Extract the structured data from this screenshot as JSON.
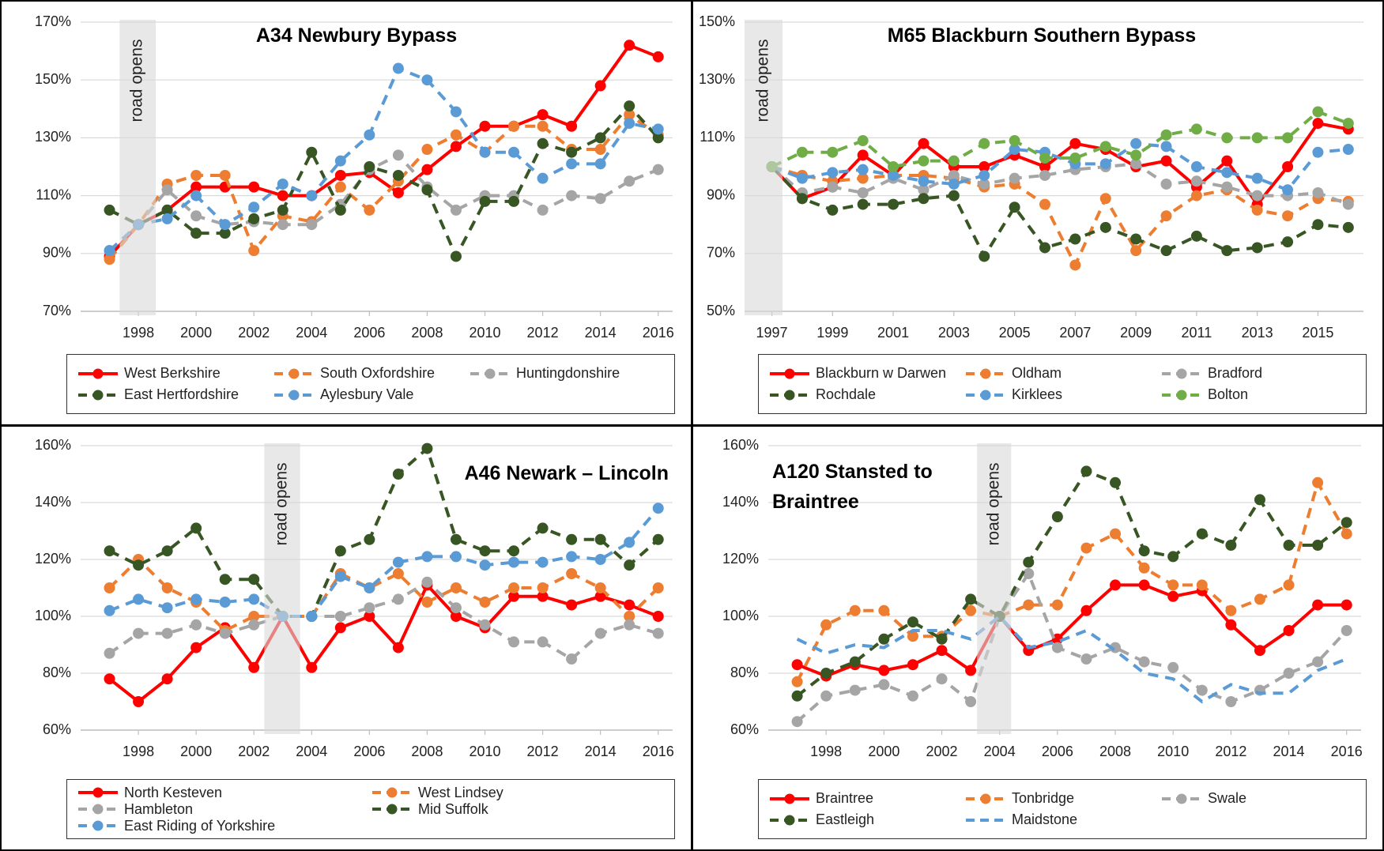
{
  "chart_data": [
    {
      "type": "line",
      "title": "A34 Newbury Bypass",
      "x": [
        1997,
        1998,
        1999,
        2000,
        2001,
        2002,
        2003,
        2004,
        2005,
        2006,
        2007,
        2008,
        2009,
        2010,
        2011,
        2012,
        2013,
        2014,
        2015,
        2016
      ],
      "xlim": [
        1996,
        2016.5
      ],
      "xticks": [
        1998,
        2000,
        2002,
        2004,
        2006,
        2008,
        2010,
        2012,
        2014,
        2016
      ],
      "ylim": [
        70,
        170
      ],
      "yticks": [
        {
          "value": 70,
          "label": "70%"
        },
        {
          "value": 90,
          "label": "90%"
        },
        {
          "value": 110,
          "label": "110%"
        },
        {
          "value": 130,
          "label": "130%"
        },
        {
          "value": 150,
          "label": "150%"
        },
        {
          "value": 170,
          "label": "170%"
        }
      ],
      "grid": true,
      "legend": "bottom",
      "annotation": {
        "text": "road opens",
        "x0": 1997.35,
        "x1": 1998.6
      },
      "series": [
        {
          "name": "West Berkshire",
          "color": "#ff0000",
          "dash": false,
          "markers": true,
          "values": [
            89,
            100,
            105,
            113,
            113,
            113,
            110,
            110,
            117,
            118,
            111,
            119,
            127,
            134,
            134,
            138,
            134,
            148,
            162,
            158
          ]
        },
        {
          "name": "South Oxfordshire",
          "color": "#ed7d31",
          "dash": true,
          "markers": true,
          "values": [
            88,
            100,
            114,
            117,
            117,
            91,
            103,
            101,
            113,
            105,
            115,
            126,
            131,
            125,
            134,
            134,
            126,
            126,
            138,
            131
          ]
        },
        {
          "name": "Huntingdonshire",
          "color": "#a5a5a5",
          "dash": true,
          "markers": true,
          "values": [
            91,
            100,
            112,
            103,
            100,
            101,
            100,
            100,
            107,
            119,
            124,
            113,
            105,
            110,
            110,
            105,
            110,
            109,
            115,
            119
          ]
        },
        {
          "name": "East Hertfordshire",
          "color": "#375623",
          "dash": true,
          "markers": true,
          "values": [
            105,
            100,
            105,
            97,
            97,
            102,
            105,
            125,
            105,
            120,
            117,
            112,
            89,
            108,
            108,
            128,
            125,
            130,
            141,
            130
          ]
        },
        {
          "name": "Aylesbury Vale",
          "color": "#5b9bd5",
          "dash": true,
          "markers": true,
          "values": [
            91,
            100,
            102,
            110,
            100,
            106,
            114,
            110,
            122,
            131,
            154,
            150,
            139,
            125,
            125,
            116,
            121,
            121,
            135,
            133
          ]
        }
      ]
    },
    {
      "type": "line",
      "title": "M65 Blackburn Southern Bypass",
      "x": [
        1997,
        1998,
        1999,
        2000,
        2001,
        2002,
        2003,
        2004,
        2005,
        2006,
        2007,
        2008,
        2009,
        2010,
        2011,
        2012,
        2013,
        2014,
        2015,
        2016
      ],
      "xlim": [
        1996.1,
        2016.5
      ],
      "xticks": [
        1997,
        1999,
        2001,
        2003,
        2005,
        2007,
        2009,
        2011,
        2013,
        2015
      ],
      "ylim": [
        50,
        150
      ],
      "yticks": [
        {
          "value": 50,
          "label": "50%"
        },
        {
          "value": 70,
          "label": "70%"
        },
        {
          "value": 90,
          "label": "90%"
        },
        {
          "value": 110,
          "label": "110%"
        },
        {
          "value": 130,
          "label": "130%"
        },
        {
          "value": 150,
          "label": "150%"
        }
      ],
      "grid": true,
      "legend": "bottom",
      "annotation": {
        "text": "road opens",
        "x0": 1996.1,
        "x1": 1997.35
      },
      "series": [
        {
          "name": "Blackburn w Darwen",
          "color": "#ff0000",
          "dash": false,
          "markers": true,
          "values": [
            100,
            89,
            93,
            104,
            97,
            108,
            100,
            100,
            104,
            100,
            108,
            106,
            100,
            102,
            93,
            102,
            87,
            100,
            115,
            113
          ]
        },
        {
          "name": "Oldham",
          "color": "#ed7d31",
          "dash": true,
          "markers": true,
          "values": [
            100,
            97,
            95,
            96,
            97,
            97,
            96,
            93,
            94,
            87,
            66,
            89,
            71,
            83,
            90,
            92,
            85,
            83,
            89,
            88
          ]
        },
        {
          "name": "Bradford",
          "color": "#a5a5a5",
          "dash": true,
          "markers": true,
          "values": [
            100,
            91,
            93,
            91,
            96,
            92,
            97,
            94,
            96,
            97,
            99,
            100,
            101,
            94,
            95,
            93,
            90,
            90,
            91,
            87
          ]
        },
        {
          "name": "Rochdale",
          "color": "#375623",
          "dash": true,
          "markers": true,
          "values": [
            100,
            89,
            85,
            87,
            87,
            89,
            90,
            69,
            86,
            72,
            75,
            79,
            75,
            71,
            76,
            71,
            72,
            74,
            80,
            79
          ]
        },
        {
          "name": "Kirklees",
          "color": "#5b9bd5",
          "dash": true,
          "markers": true,
          "values": [
            100,
            96,
            98,
            99,
            97,
            95,
            94,
            97,
            106,
            105,
            101,
            101,
            108,
            107,
            100,
            98,
            96,
            92,
            105,
            106
          ]
        },
        {
          "name": "Bolton",
          "color": "#70ad47",
          "dash": true,
          "markers": true,
          "values": [
            100,
            105,
            105,
            109,
            100,
            102,
            102,
            108,
            109,
            103,
            103,
            107,
            104,
            111,
            113,
            110,
            110,
            110,
            119,
            115
          ]
        }
      ]
    },
    {
      "type": "line",
      "title": "A46 Newark – Lincoln",
      "x": [
        1997,
        1998,
        1999,
        2000,
        2001,
        2002,
        2003,
        2004,
        2005,
        2006,
        2007,
        2008,
        2009,
        2010,
        2011,
        2012,
        2013,
        2014,
        2015,
        2016
      ],
      "xlim": [
        1996,
        2016.5
      ],
      "xticks": [
        1998,
        2000,
        2002,
        2004,
        2006,
        2008,
        2010,
        2012,
        2014,
        2016
      ],
      "ylim": [
        60,
        160
      ],
      "yticks": [
        {
          "value": 60,
          "label": "60%"
        },
        {
          "value": 80,
          "label": "80%"
        },
        {
          "value": 100,
          "label": "100%"
        },
        {
          "value": 120,
          "label": "120%"
        },
        {
          "value": 140,
          "label": "140%"
        },
        {
          "value": 160,
          "label": "160%"
        }
      ],
      "grid": true,
      "legend": "bottom",
      "annotation": {
        "text": "road opens",
        "x0": 2002.36,
        "x1": 2003.6
      },
      "series": [
        {
          "name": "North Kesteven",
          "color": "#ff0000",
          "dash": false,
          "markers": true,
          "values": [
            78,
            70,
            78,
            89,
            96,
            82,
            100,
            82,
            96,
            100,
            89,
            111,
            100,
            96,
            107,
            107,
            104,
            107,
            104,
            100
          ]
        },
        {
          "name": "West Lindsey",
          "color": "#ed7d31",
          "dash": true,
          "markers": true,
          "values": [
            110,
            120,
            110,
            105,
            95,
            100,
            100,
            100,
            115,
            110,
            115,
            105,
            110,
            105,
            110,
            110,
            115,
            110,
            100,
            110
          ]
        },
        {
          "name": "Hambleton",
          "color": "#a5a5a5",
          "dash": true,
          "markers": true,
          "values": [
            87,
            94,
            94,
            97,
            94,
            97,
            100,
            100,
            100,
            103,
            106,
            112,
            103,
            97,
            91,
            91,
            85,
            94,
            97,
            94
          ]
        },
        {
          "name": "Mid Suffolk",
          "color": "#375623",
          "dash": true,
          "markers": true,
          "values": [
            123,
            118,
            123,
            131,
            113,
            113,
            100,
            100,
            123,
            127,
            150,
            159,
            127,
            123,
            123,
            131,
            127,
            127,
            118,
            127
          ]
        },
        {
          "name": "East Riding of Yorkshire",
          "color": "#5b9bd5",
          "dash": true,
          "markers": true,
          "values": [
            102,
            106,
            103,
            106,
            105,
            106,
            100,
            100,
            114,
            110,
            119,
            121,
            121,
            118,
            119,
            119,
            121,
            120,
            126,
            138
          ]
        }
      ]
    },
    {
      "type": "line",
      "title": "A120 Stansted to Braintree",
      "x": [
        1997,
        1998,
        1999,
        2000,
        2001,
        2002,
        2003,
        2004,
        2005,
        2006,
        2007,
        2008,
        2009,
        2010,
        2011,
        2012,
        2013,
        2014,
        2015,
        2016
      ],
      "xlim": [
        1996,
        2016.5
      ],
      "xticks": [
        1998,
        2000,
        2002,
        2004,
        2006,
        2008,
        2010,
        2012,
        2014,
        2016
      ],
      "ylim": [
        60,
        160
      ],
      "yticks": [
        {
          "value": 60,
          "label": "60%"
        },
        {
          "value": 80,
          "label": "80%"
        },
        {
          "value": 100,
          "label": "100%"
        },
        {
          "value": 120,
          "label": "120%"
        },
        {
          "value": 140,
          "label": "140%"
        },
        {
          "value": 160,
          "label": "160%"
        }
      ],
      "grid": true,
      "legend": "bottom",
      "annotation": {
        "text": "road opens",
        "x0": 2003.22,
        "x1": 2004.4
      },
      "series": [
        {
          "name": "Braintree",
          "color": "#ff0000",
          "dash": false,
          "markers": true,
          "values": [
            83,
            79,
            83,
            81,
            83,
            88,
            81,
            100,
            88,
            92,
            102,
            111,
            111,
            107,
            109,
            97,
            88,
            95,
            104,
            104
          ]
        },
        {
          "name": "Tonbridge",
          "color": "#ed7d31",
          "dash": true,
          "markers": true,
          "values": [
            77,
            97,
            102,
            102,
            93,
            93,
            102,
            100,
            104,
            104,
            124,
            129,
            117,
            111,
            111,
            102,
            106,
            111,
            147,
            129
          ]
        },
        {
          "name": "Swale",
          "color": "#a5a5a5",
          "dash": true,
          "markers": true,
          "values": [
            63,
            72,
            74,
            76,
            72,
            78,
            70,
            100,
            115,
            89,
            85,
            89,
            84,
            82,
            74,
            70,
            74,
            80,
            84,
            95
          ]
        },
        {
          "name": "Eastleigh",
          "color": "#375623",
          "dash": true,
          "markers": true,
          "values": [
            72,
            80,
            84,
            92,
            98,
            92,
            106,
            100,
            119,
            135,
            151,
            147,
            123,
            121,
            129,
            125,
            141,
            125,
            125,
            133
          ]
        },
        {
          "name": "Maidstone",
          "color": "#5b9bd5",
          "dash": true,
          "markers": false,
          "values": [
            92,
            87,
            90,
            89,
            95,
            95,
            92,
            100,
            89,
            91,
            95,
            88,
            80,
            78,
            70,
            76,
            73,
            73,
            81,
            85
          ]
        }
      ]
    }
  ]
}
